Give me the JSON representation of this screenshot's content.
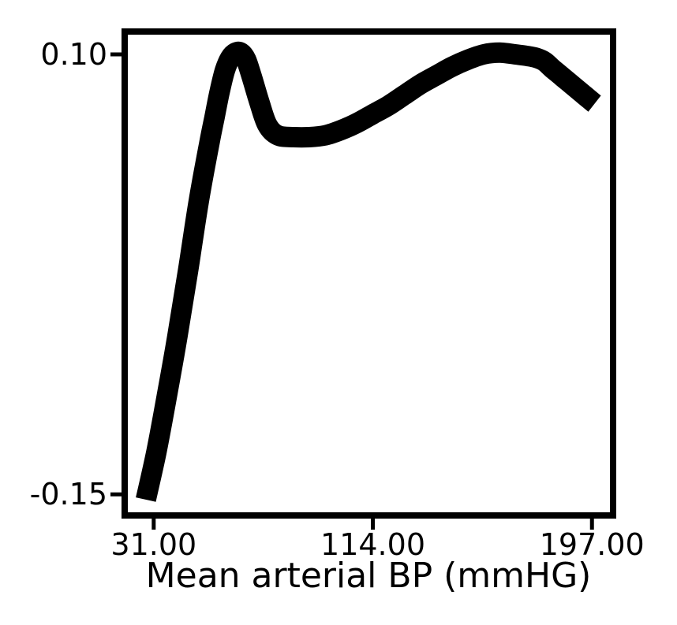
{
  "chart_data": {
    "type": "line",
    "title": "",
    "xlabel": "Mean arterial BP (mmHG)",
    "ylabel": "",
    "xlim": [
      20,
      205
    ],
    "ylim": [
      -0.162,
      0.113
    ],
    "grid": false,
    "legend": "none",
    "x_ticks": [
      {
        "value": 31,
        "label": "31.00"
      },
      {
        "value": 114,
        "label": "114.00"
      },
      {
        "value": 197,
        "label": "197.00"
      }
    ],
    "y_ticks": [
      {
        "value": 0.1,
        "label": "0.10"
      },
      {
        "value": -0.15,
        "label": "-0.15"
      }
    ],
    "series": [
      {
        "color": "#000000",
        "x": [
          28,
          32,
          36,
          40,
          44,
          48,
          52,
          54,
          56,
          58,
          60,
          62,
          64,
          66,
          68,
          71,
          74,
          78,
          84,
          90,
          96,
          102,
          108,
          114,
          120,
          126,
          132,
          138,
          144,
          150,
          156,
          162,
          168,
          173,
          176,
          179,
          182,
          186,
          190,
          194,
          198
        ],
        "y": [
          -0.153,
          -0.126,
          -0.094,
          -0.06,
          -0.023,
          0.016,
          0.049,
          0.064,
          0.079,
          0.091,
          0.098,
          0.101,
          0.101,
          0.097,
          0.088,
          0.073,
          0.06,
          0.054,
          0.053,
          0.053,
          0.054,
          0.057,
          0.061,
          0.066,
          0.071,
          0.077,
          0.083,
          0.088,
          0.093,
          0.097,
          0.1,
          0.101,
          0.1,
          0.099,
          0.098,
          0.096,
          0.092,
          0.087,
          0.082,
          0.077,
          0.072
        ]
      }
    ]
  }
}
